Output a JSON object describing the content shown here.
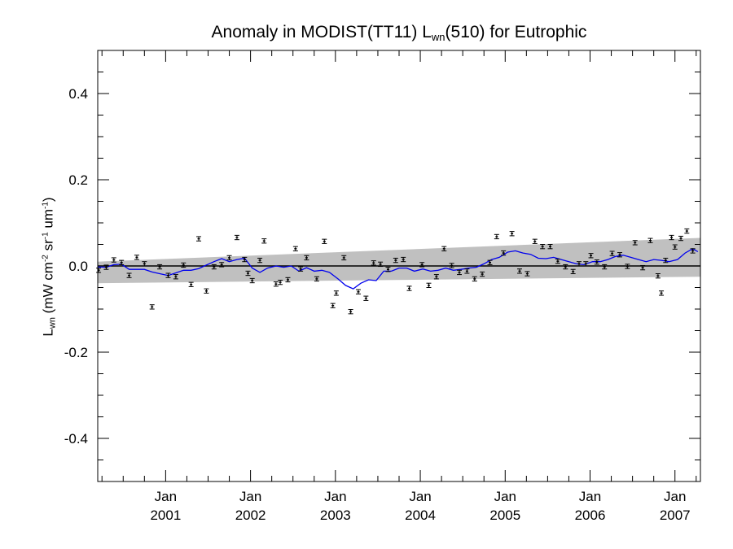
{
  "chart_data": {
    "type": "line",
    "title": {
      "prefix": "Anomaly in MODIST(TT11) L",
      "sub": "wn",
      "suffix": "(510) for Eutrophic"
    },
    "ylabel": {
      "main": "L",
      "sub": "wn",
      "unit_open": " (mW cm",
      "sup1": "-2",
      "unit_mid": " sr",
      "sup2": "-1",
      "unit_mid2": " um",
      "sup3": "-1",
      "unit_close": ")"
    },
    "ylim": [
      -0.5,
      0.5
    ],
    "xlim": [
      2000.2,
      2007.3
    ],
    "yticks": [
      {
        "v": 0.4,
        "label": "0.4"
      },
      {
        "v": 0.2,
        "label": "0.2"
      },
      {
        "v": 0.0,
        "label": "0.0"
      },
      {
        "v": -0.2,
        "label": "-0.2"
      },
      {
        "v": -0.4,
        "label": "-0.4"
      }
    ],
    "xticks": [
      {
        "x": 2001.0,
        "month": "Jan",
        "year": "2001"
      },
      {
        "x": 2002.0,
        "month": "Jan",
        "year": "2002"
      },
      {
        "x": 2003.0,
        "month": "Jan",
        "year": "2003"
      },
      {
        "x": 2004.0,
        "month": "Jan",
        "year": "2004"
      },
      {
        "x": 2005.0,
        "month": "Jan",
        "year": "2005"
      },
      {
        "x": 2006.0,
        "month": "Jan",
        "year": "2006"
      },
      {
        "x": 2007.0,
        "month": "Jan",
        "year": "2007"
      }
    ],
    "grid": false,
    "zero_line": 0.0,
    "band": {
      "x": [
        2000.2,
        2007.3
      ],
      "upper": [
        0.01,
        0.065
      ],
      "lower": [
        -0.04,
        -0.025
      ]
    },
    "series": [
      {
        "style": "errorbar-markers",
        "color": "#000000",
        "x": [
          2000.21,
          2000.3,
          2000.39,
          2000.48,
          2000.57,
          2000.66,
          2000.75,
          2000.84,
          2000.93,
          2001.03,
          2001.12,
          2001.21,
          2001.3,
          2001.39,
          2001.48,
          2001.57,
          2001.66,
          2001.75,
          2001.84,
          2001.93,
          2001.97,
          2002.02,
          2002.11,
          2002.16,
          2002.3,
          2002.35,
          2002.44,
          2002.53,
          2002.59,
          2002.66,
          2002.78,
          2002.87,
          2002.97,
          2003.01,
          2003.1,
          2003.18,
          2003.27,
          2003.36,
          2003.45,
          2003.53,
          2003.62,
          2003.71,
          2003.8,
          2003.87,
          2004.02,
          2004.1,
          2004.19,
          2004.28,
          2004.37,
          2004.46,
          2004.55,
          2004.64,
          2004.73,
          2004.82,
          2004.9,
          2004.98,
          2005.08,
          2005.17,
          2005.26,
          2005.35,
          2005.44,
          2005.53,
          2005.62,
          2005.71,
          2005.8,
          2005.87,
          2005.95,
          2006.01,
          2006.08,
          2006.17,
          2006.26,
          2006.35,
          2006.44,
          2006.53,
          2006.62,
          2006.71,
          2006.8,
          2006.84,
          2006.89,
          2006.96,
          2007.0,
          2007.07,
          2007.14,
          2007.21
        ],
        "y": [
          -0.01,
          -0.003,
          0.014,
          0.008,
          -0.022,
          0.02,
          0.005,
          -0.095,
          -0.002,
          -0.022,
          -0.025,
          0.002,
          -0.043,
          0.063,
          -0.058,
          -0.002,
          0.003,
          0.019,
          0.066,
          0.015,
          -0.017,
          -0.034,
          0.013,
          0.058,
          -0.042,
          -0.038,
          -0.032,
          0.04,
          -0.007,
          0.019,
          -0.03,
          0.057,
          -0.092,
          -0.063,
          0.019,
          -0.106,
          -0.06,
          -0.075,
          0.007,
          0.004,
          -0.008,
          0.013,
          0.015,
          -0.052,
          0.003,
          -0.045,
          -0.025,
          0.04,
          0.001,
          -0.015,
          -0.012,
          -0.03,
          -0.019,
          0.008,
          0.068,
          0.03,
          0.075,
          -0.012,
          -0.018,
          0.057,
          0.045,
          0.045,
          0.011,
          -0.002,
          -0.013,
          0.005,
          0.005,
          0.024,
          0.009,
          -0.002,
          0.029,
          0.026,
          -0.001,
          0.054,
          -0.004,
          0.059,
          -0.023,
          -0.063,
          0.013,
          0.066,
          0.044,
          0.064,
          0.081,
          0.035
        ],
        "err": 0.005
      },
      {
        "style": "line",
        "color": "#0000ee",
        "x": [
          2000.2,
          2000.3,
          2000.39,
          2000.48,
          2000.57,
          2000.66,
          2000.75,
          2000.84,
          2000.93,
          2001.03,
          2001.12,
          2001.21,
          2001.3,
          2001.39,
          2001.48,
          2001.57,
          2001.66,
          2001.75,
          2001.84,
          2001.93,
          2002.02,
          2002.11,
          2002.2,
          2002.3,
          2002.39,
          2002.48,
          2002.57,
          2002.66,
          2002.75,
          2002.84,
          2002.93,
          2003.03,
          2003.12,
          2003.21,
          2003.3,
          2003.39,
          2003.48,
          2003.57,
          2003.66,
          2003.75,
          2003.84,
          2003.93,
          2004.03,
          2004.12,
          2004.21,
          2004.3,
          2004.39,
          2004.48,
          2004.57,
          2004.66,
          2004.75,
          2004.84,
          2004.93,
          2005.03,
          2005.12,
          2005.21,
          2005.3,
          2005.39,
          2005.48,
          2005.57,
          2005.66,
          2005.75,
          2005.84,
          2005.93,
          2006.03,
          2006.12,
          2006.21,
          2006.3,
          2006.39,
          2006.48,
          2006.57,
          2006.66,
          2006.75,
          2006.84,
          2006.93,
          2007.03,
          2007.12,
          2007.21,
          2007.27
        ],
        "y": [
          -0.002,
          -0.003,
          0.003,
          0.004,
          -0.008,
          -0.008,
          -0.008,
          -0.014,
          -0.018,
          -0.022,
          -0.016,
          -0.01,
          -0.01,
          -0.006,
          0.002,
          0.01,
          0.017,
          0.01,
          0.015,
          0.018,
          -0.005,
          -0.015,
          -0.005,
          0.0,
          -0.003,
          0.0,
          -0.012,
          -0.004,
          -0.012,
          -0.01,
          -0.015,
          -0.03,
          -0.045,
          -0.053,
          -0.04,
          -0.032,
          -0.034,
          -0.012,
          -0.012,
          -0.005,
          -0.005,
          -0.012,
          -0.007,
          -0.012,
          -0.01,
          -0.005,
          -0.01,
          -0.008,
          -0.005,
          -0.003,
          0.005,
          0.015,
          0.02,
          0.032,
          0.035,
          0.03,
          0.027,
          0.018,
          0.017,
          0.02,
          0.015,
          0.01,
          0.005,
          0.003,
          0.01,
          0.01,
          0.015,
          0.022,
          0.025,
          0.02,
          0.015,
          0.01,
          0.015,
          0.013,
          0.01,
          0.015,
          0.03,
          0.04,
          0.033
        ]
      }
    ]
  }
}
